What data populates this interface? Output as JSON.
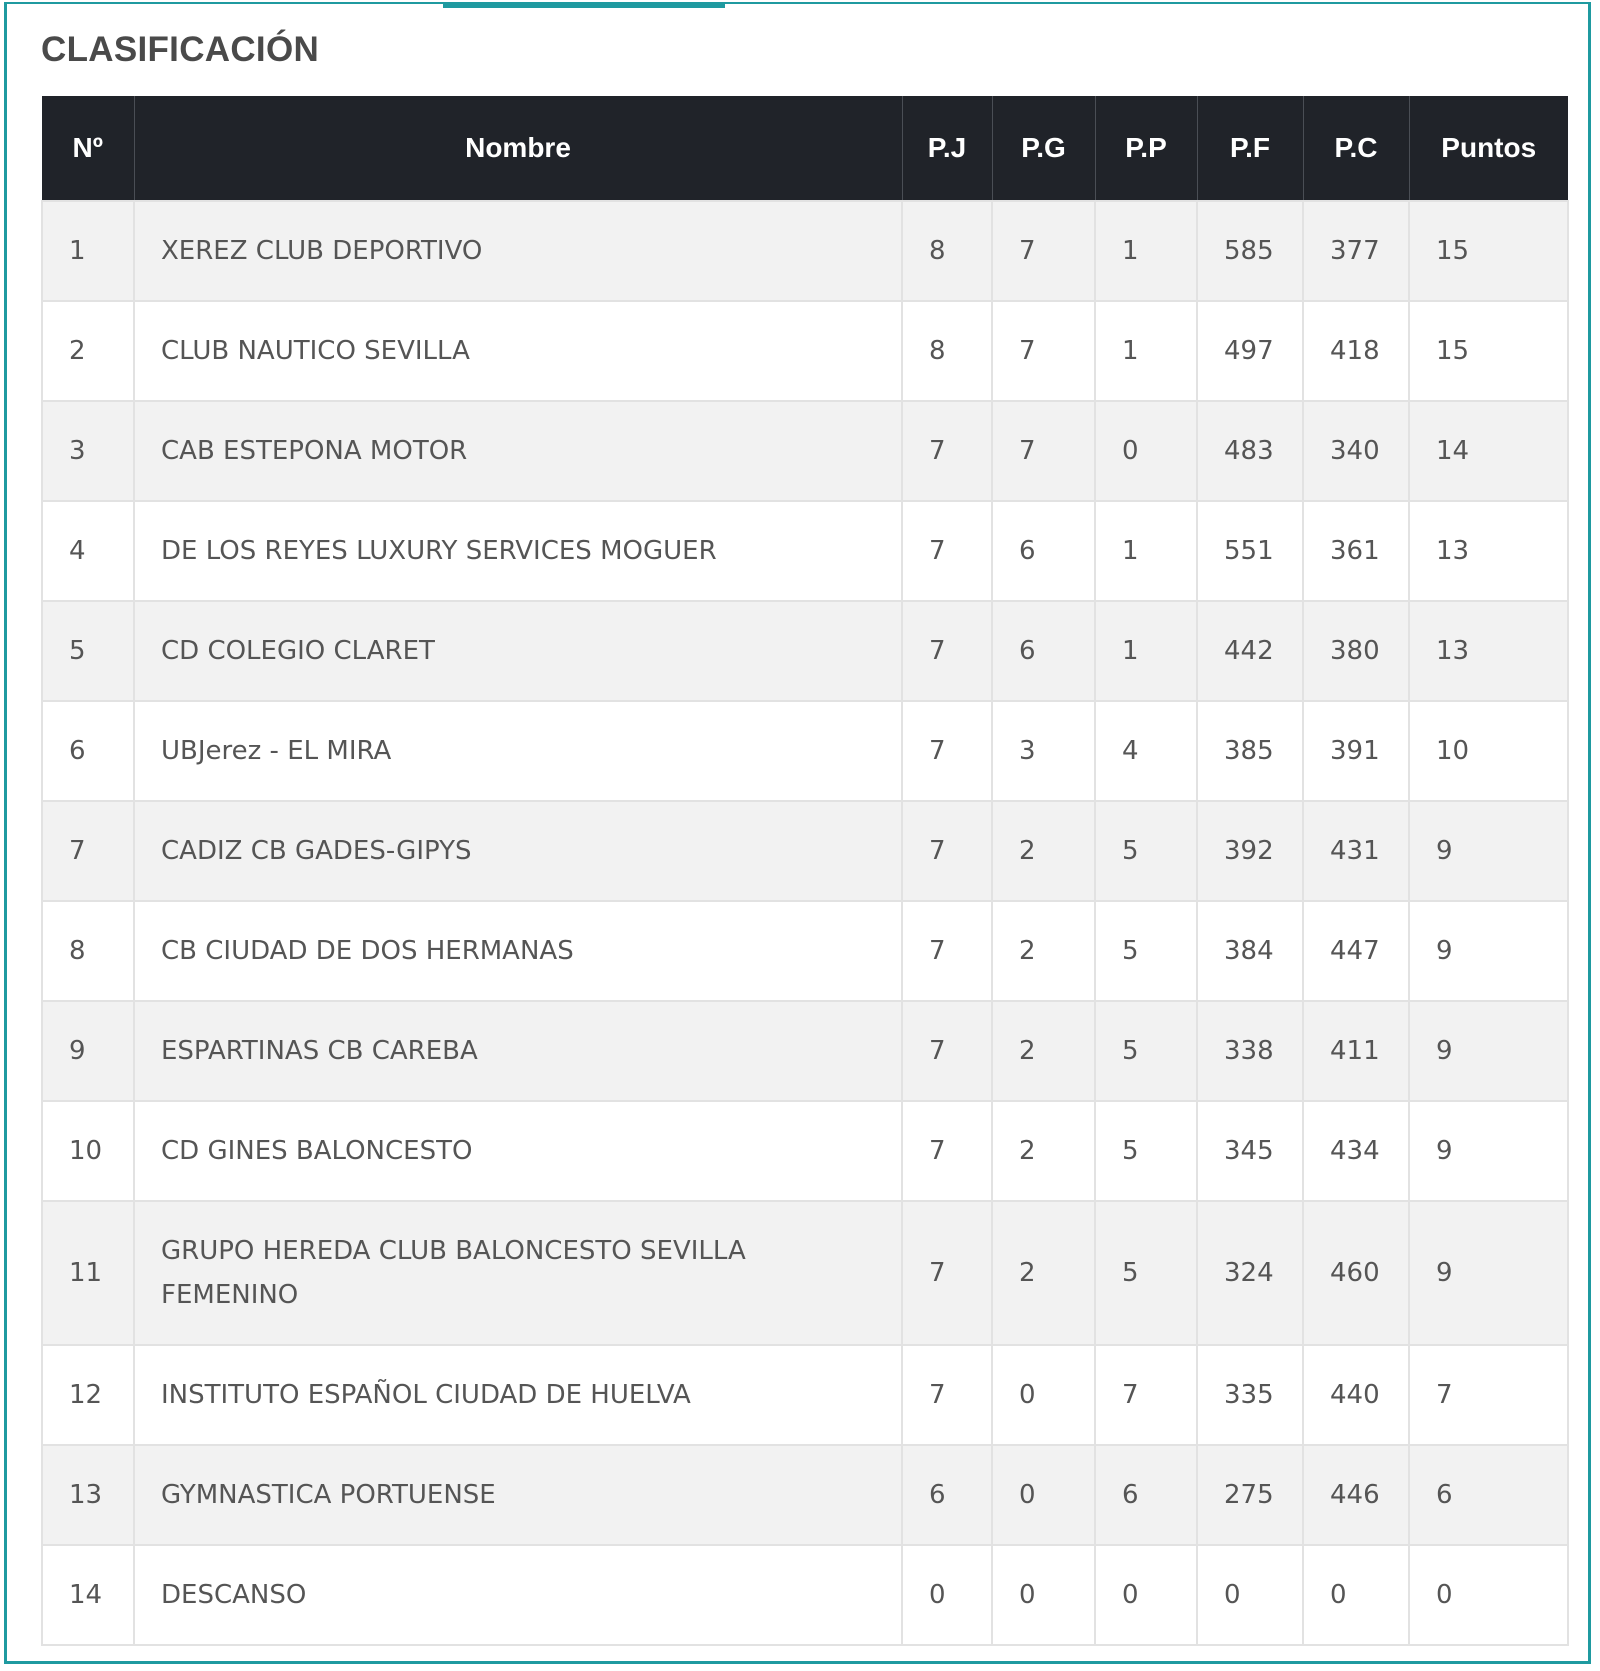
{
  "title": "CLASIFICACIÓN",
  "columns": [
    "Nº",
    "Nombre",
    "P.J",
    "P.G",
    "P.P",
    "P.F",
    "P.C",
    "Puntos"
  ],
  "rows": [
    {
      "pos": "1",
      "name": "XEREZ CLUB DEPORTIVO",
      "pj": "8",
      "pg": "7",
      "pp": "1",
      "pf": "585",
      "pc": "377",
      "pts": "15"
    },
    {
      "pos": "2",
      "name": "CLUB NAUTICO SEVILLA",
      "pj": "8",
      "pg": "7",
      "pp": "1",
      "pf": "497",
      "pc": "418",
      "pts": "15"
    },
    {
      "pos": "3",
      "name": "CAB ESTEPONA MOTOR",
      "pj": "7",
      "pg": "7",
      "pp": "0",
      "pf": "483",
      "pc": "340",
      "pts": "14"
    },
    {
      "pos": "4",
      "name": "DE LOS REYES LUXURY SERVICES MOGUER",
      "pj": "7",
      "pg": "6",
      "pp": "1",
      "pf": "551",
      "pc": "361",
      "pts": "13"
    },
    {
      "pos": "5",
      "name": "CD COLEGIO CLARET",
      "pj": "7",
      "pg": "6",
      "pp": "1",
      "pf": "442",
      "pc": "380",
      "pts": "13"
    },
    {
      "pos": "6",
      "name": "UBJerez - EL MIRA",
      "pj": "7",
      "pg": "3",
      "pp": "4",
      "pf": "385",
      "pc": "391",
      "pts": "10"
    },
    {
      "pos": "7",
      "name": "CADIZ CB GADES-GIPYS",
      "pj": "7",
      "pg": "2",
      "pp": "5",
      "pf": "392",
      "pc": "431",
      "pts": "9"
    },
    {
      "pos": "8",
      "name": "CB CIUDAD DE DOS HERMANAS",
      "pj": "7",
      "pg": "2",
      "pp": "5",
      "pf": "384",
      "pc": "447",
      "pts": "9"
    },
    {
      "pos": "9",
      "name": "ESPARTINAS CB CAREBA",
      "pj": "7",
      "pg": "2",
      "pp": "5",
      "pf": "338",
      "pc": "411",
      "pts": "9"
    },
    {
      "pos": "10",
      "name": "CD GINES BALONCESTO",
      "pj": "7",
      "pg": "2",
      "pp": "5",
      "pf": "345",
      "pc": "434",
      "pts": "9"
    },
    {
      "pos": "11",
      "name": "GRUPO HEREDA CLUB BALONCESTO SEVILLA FEMENINO",
      "pj": "7",
      "pg": "2",
      "pp": "5",
      "pf": "324",
      "pc": "460",
      "pts": "9"
    },
    {
      "pos": "12",
      "name": "INSTITUTO ESPAÑOL CIUDAD DE HUELVA",
      "pj": "7",
      "pg": "0",
      "pp": "7",
      "pf": "335",
      "pc": "440",
      "pts": "7"
    },
    {
      "pos": "13",
      "name": "GYMNASTICA PORTUENSE",
      "pj": "6",
      "pg": "0",
      "pp": "6",
      "pf": "275",
      "pc": "446",
      "pts": "6"
    },
    {
      "pos": "14",
      "name": "DESCANSO",
      "pj": "0",
      "pg": "0",
      "pp": "0",
      "pf": "0",
      "pc": "0",
      "pts": "0"
    }
  ]
}
